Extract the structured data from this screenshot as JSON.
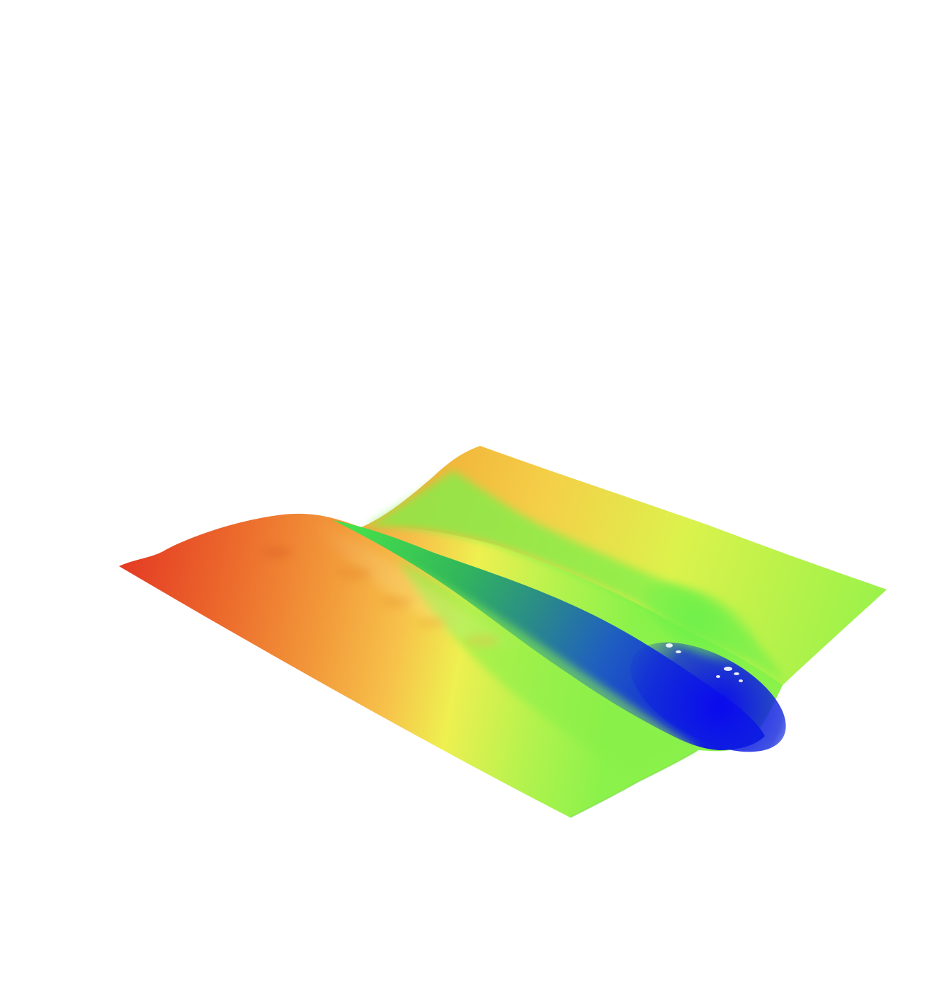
{
  "scene": {
    "background_color": "#ffffff",
    "colormap": {
      "name": "jet-like",
      "low": "#1010dd",
      "stops": [
        "#1010dd",
        "#2a7fe0",
        "#44dd44",
        "#7df54a",
        "#c6f54a",
        "#f0f050",
        "#f5c040",
        "#f08a35",
        "#e84a2a"
      ],
      "high": "#e84a2a"
    },
    "features": {
      "left_ridge_color": "#e84a2a",
      "trough_color": "#1010dd",
      "right_plateau_color": "#7df54a"
    }
  }
}
